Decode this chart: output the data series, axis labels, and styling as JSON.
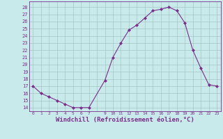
{
  "x": [
    0,
    1,
    2,
    3,
    4,
    5,
    6,
    7,
    9,
    10,
    11,
    12,
    13,
    14,
    15,
    16,
    17,
    18,
    19,
    20,
    21,
    22,
    23
  ],
  "y": [
    17,
    16,
    15.5,
    15,
    14.5,
    14,
    14,
    14,
    17.8,
    21,
    23,
    24.8,
    25.5,
    26.5,
    27.5,
    27.7,
    28,
    27.5,
    25.8,
    22,
    19.5,
    17.2,
    17
  ],
  "line_color": "#7b2d8b",
  "marker": "D",
  "marker_size": 2.0,
  "bg_color": "#c8eaea",
  "grid_color": "#9dbdbd",
  "xlabel": "Windchill (Refroidissement éolien,°C)",
  "xlabel_fontsize": 6.5,
  "xtick_labels": [
    "0",
    "1",
    "2",
    "3",
    "4",
    "5",
    "6",
    "7",
    "",
    "9",
    "10",
    "11",
    "12",
    "13",
    "14",
    "15",
    "16",
    "17",
    "18",
    "19",
    "20",
    "21",
    "22",
    "23"
  ],
  "ytick_min": 14,
  "ytick_max": 28,
  "ytick_step": 1,
  "xlim": [
    -0.5,
    23.5
  ],
  "ylim": [
    13.5,
    28.8
  ]
}
